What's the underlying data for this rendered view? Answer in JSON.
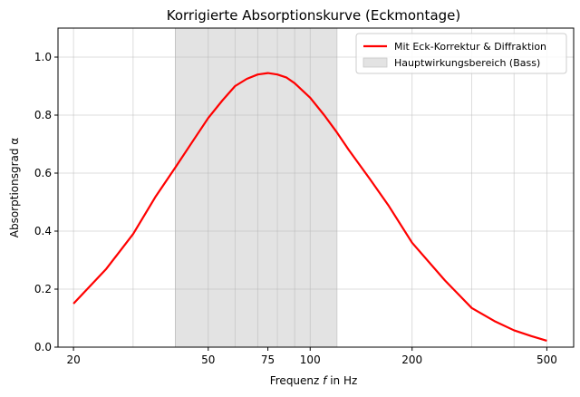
{
  "chart_data": {
    "type": "line",
    "title": "Korrigierte Absorptionskurve (Eckmontage)",
    "xlabel_prefix": "Frequenz ",
    "xlabel_var": "f",
    "xlabel_suffix": " in Hz",
    "ylabel": "Absorptionsgrad α",
    "xscale": "log",
    "xlim": [
      18,
      600
    ],
    "ylim": [
      0.0,
      1.1
    ],
    "x_ticks": [
      20,
      50,
      75,
      100,
      200,
      500
    ],
    "x_tick_labels": [
      "20",
      "50",
      "75",
      "100",
      "200",
      "500"
    ],
    "y_ticks": [
      0.0,
      0.2,
      0.4,
      0.6,
      0.8,
      1.0
    ],
    "y_tick_labels": [
      "0.0",
      "0.2",
      "0.4",
      "0.6",
      "0.8",
      "1.0"
    ],
    "grid": true,
    "minor_x_grid": [
      20,
      30,
      40,
      50,
      60,
      70,
      80,
      90,
      100,
      200,
      300,
      400,
      500
    ],
    "legend_position": "top-right",
    "shaded_region": {
      "name": "Hauptwirkungsbereich (Bass)",
      "x_start": 40,
      "x_end": 120,
      "color": "#e3e3e3"
    },
    "series": [
      {
        "name": "Mit Eck-Korrektur & Diffraktion",
        "color": "#ff0000",
        "x": [
          20,
          25,
          30,
          35,
          40,
          45,
          50,
          55,
          60,
          65,
          70,
          75,
          80,
          85,
          90,
          100,
          110,
          120,
          130,
          150,
          170,
          200,
          250,
          300,
          350,
          400,
          450,
          500
        ],
        "y": [
          0.15,
          0.27,
          0.39,
          0.52,
          0.62,
          0.71,
          0.79,
          0.85,
          0.9,
          0.925,
          0.94,
          0.945,
          0.94,
          0.93,
          0.91,
          0.86,
          0.8,
          0.74,
          0.68,
          0.58,
          0.49,
          0.36,
          0.23,
          0.135,
          0.09,
          0.058,
          0.038,
          0.022
        ]
      }
    ]
  }
}
